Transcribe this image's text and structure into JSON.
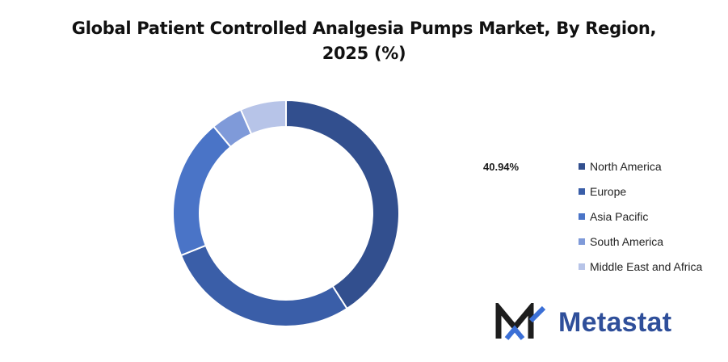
{
  "chart_data": {
    "type": "pie",
    "title_line1": "Global Patient Controlled Analgesia Pumps Market, By Region,",
    "title_line2": "2025 (%)",
    "categories": [
      "North America",
      "Europe",
      "Asia Pacific",
      "South America",
      "Middle East and Africa"
    ],
    "values": [
      40.94,
      28.0,
      20.0,
      4.5,
      6.56
    ],
    "colors": [
      "#324f8e",
      "#3a5ea8",
      "#4a74c7",
      "#7f9ad9",
      "#b7c4e8"
    ],
    "annotation": "40.94%",
    "legend_position": "right"
  },
  "brand": {
    "name": "Metastat"
  }
}
